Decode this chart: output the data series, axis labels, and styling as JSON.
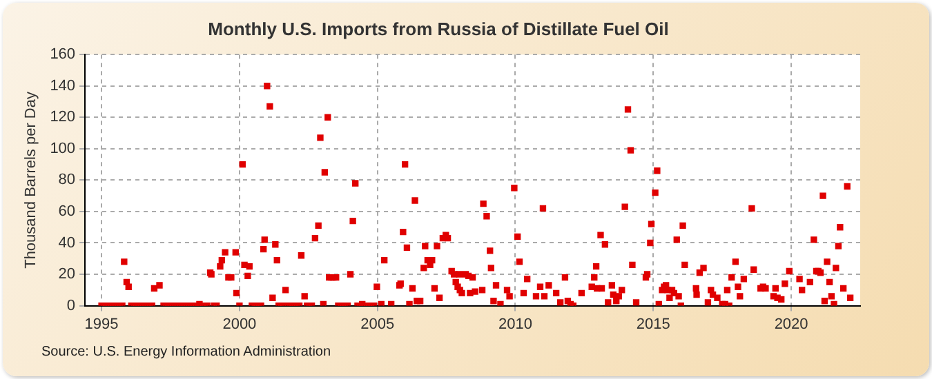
{
  "chart_data": {
    "type": "scatter",
    "title": "Monthly U.S. Imports from Russia of Distillate Fuel Oil",
    "ylabel": "Thousand Barrels per Day",
    "annotations": [
      "Source: U.S. Energy Information Administration"
    ],
    "x": [
      1995.0,
      1995.08,
      1995.17,
      1995.25,
      1995.33,
      1995.42,
      1995.5,
      1995.58,
      1995.67,
      1995.75,
      1995.82,
      1995.91,
      1995.98,
      1996.08,
      1996.17,
      1996.25,
      1996.33,
      1996.42,
      1996.5,
      1996.58,
      1996.67,
      1996.75,
      1996.83,
      1996.91,
      1997.1,
      1997.25,
      1997.33,
      1997.42,
      1997.5,
      1997.58,
      1997.67,
      1997.75,
      1997.83,
      1997.92,
      1998.0,
      1998.08,
      1998.17,
      1998.25,
      1998.33,
      1998.42,
      1998.5,
      1998.55,
      1998.67,
      1998.75,
      1998.83,
      1998.94,
      1998.98,
      1999.08,
      1999.17,
      1999.3,
      1999.36,
      1999.48,
      1999.6,
      1999.7,
      1999.86,
      1999.89,
      2000.0,
      2000.11,
      2000.18,
      2000.3,
      2000.36,
      2000.45,
      2000.55,
      2000.62,
      2000.7,
      2000.78,
      2000.87,
      2000.91,
      2001.0,
      2001.1,
      2001.2,
      2001.3,
      2001.36,
      2001.42,
      2001.5,
      2001.58,
      2001.67,
      2001.75,
      2001.83,
      2001.92,
      2002.0,
      2002.08,
      2002.17,
      2002.24,
      2002.36,
      2002.45,
      2002.53,
      2002.62,
      2002.74,
      2002.86,
      2002.93,
      2003.04,
      2003.09,
      2003.2,
      2003.25,
      2003.33,
      2003.4,
      2003.5,
      2003.58,
      2003.67,
      2003.75,
      2003.83,
      2003.92,
      2004.02,
      2004.11,
      2004.2,
      2004.28,
      2004.36,
      2004.45,
      2004.53,
      2004.62,
      2004.7,
      2004.78,
      2004.87,
      2004.98,
      2005.14,
      2005.25,
      2005.5,
      2005.8,
      2005.84,
      2005.93,
      2006.0,
      2006.07,
      2006.16,
      2006.27,
      2006.36,
      2006.43,
      2006.55,
      2006.68,
      2006.73,
      2006.82,
      2006.91,
      2006.98,
      2007.07,
      2007.16,
      2007.25,
      2007.37,
      2007.48,
      2007.55,
      2007.69,
      2007.78,
      2007.84,
      2007.91,
      2007.97,
      2007.99,
      2008.06,
      2008.2,
      2008.3,
      2008.36,
      2008.45,
      2008.54,
      2008.8,
      2008.84,
      2008.96,
      2009.08,
      2009.12,
      2009.21,
      2009.3,
      2009.46,
      2009.7,
      2009.79,
      2009.96,
      2010.08,
      2010.15,
      2010.3,
      2010.43,
      2010.75,
      2010.9,
      2011.0,
      2011.05,
      2011.21,
      2011.48,
      2011.63,
      2011.8,
      2011.9,
      2012.0,
      2012.1,
      2012.4,
      2012.77,
      2012.86,
      2012.93,
      2012.96,
      2013.09,
      2013.13,
      2013.25,
      2013.36,
      2013.5,
      2013.55,
      2013.66,
      2013.75,
      2013.86,
      2013.97,
      2014.08,
      2014.18,
      2014.24,
      2014.38,
      2014.73,
      2014.78,
      2014.89,
      2014.93,
      2015.07,
      2015.14,
      2015.2,
      2015.32,
      2015.39,
      2015.46,
      2015.52,
      2015.59,
      2015.68,
      2015.75,
      2015.85,
      2015.92,
      2016.0,
      2016.07,
      2016.14,
      2016.55,
      2016.57,
      2016.68,
      2016.82,
      2016.98,
      2017.09,
      2017.16,
      2017.32,
      2017.5,
      2017.6,
      2017.68,
      2017.75,
      2017.84,
      2017.98,
      2018.07,
      2018.14,
      2018.28,
      2018.57,
      2018.64,
      2018.89,
      2018.98,
      2019.07,
      2019.36,
      2019.43,
      2019.5,
      2019.64,
      2019.77,
      2019.93,
      2020.3,
      2020.39,
      2020.68,
      2020.82,
      2020.91,
      2020.98,
      2021.06,
      2021.15,
      2021.21,
      2021.3,
      2021.39,
      2021.46,
      2021.55,
      2021.62,
      2021.71,
      2021.77,
      2021.89,
      2022.03,
      2022.14
    ],
    "values": [
      0,
      0,
      0,
      0,
      0,
      0,
      0,
      0,
      0,
      0,
      28,
      15,
      12,
      0,
      0,
      0,
      0,
      0,
      0,
      0,
      0,
      0,
      0,
      11,
      13,
      0,
      0,
      0,
      0,
      0,
      0,
      0,
      0,
      0,
      0,
      0,
      0,
      0,
      0,
      0,
      0,
      1,
      0,
      0,
      0,
      21,
      20,
      0,
      0,
      25,
      29,
      34,
      18,
      18,
      34,
      8,
      0,
      90,
      26,
      19,
      25,
      0,
      0,
      0,
      0,
      0,
      36,
      42,
      140,
      127,
      5,
      39,
      29,
      0,
      0,
      0,
      10,
      0,
      0,
      0,
      0,
      0,
      0,
      32,
      6,
      0,
      0,
      0,
      43,
      51,
      107,
      1,
      85,
      120,
      18,
      18,
      18,
      18,
      0,
      0,
      0,
      0,
      0,
      20,
      54,
      78,
      0,
      0,
      1,
      0,
      0,
      0,
      0,
      0,
      12,
      1,
      29,
      1,
      13,
      14,
      47,
      90,
      37,
      1,
      11,
      67,
      3,
      3,
      24,
      38,
      29,
      26,
      29,
      11,
      38,
      5,
      43,
      45,
      43,
      22,
      20,
      15,
      12,
      20,
      10,
      8,
      20,
      19,
      8,
      18,
      9,
      10,
      65,
      57,
      35,
      24,
      3,
      13,
      1,
      10,
      6,
      75,
      44,
      28,
      8,
      17,
      6,
      12,
      62,
      6,
      13,
      8,
      2,
      18,
      3,
      1,
      0,
      8,
      12,
      18,
      25,
      11,
      45,
      11,
      39,
      2,
      13,
      7,
      3,
      6,
      10,
      63,
      125,
      99,
      26,
      2,
      18,
      20,
      40,
      52,
      72,
      86,
      1,
      10,
      12,
      13,
      10,
      5,
      10,
      8,
      42,
      6,
      0,
      51,
      26,
      11,
      7,
      21,
      24,
      2,
      10,
      7,
      5,
      1,
      1,
      10,
      0,
      18,
      28,
      12,
      6,
      17,
      62,
      23,
      11,
      12,
      11,
      6,
      11,
      5,
      4,
      14,
      22,
      17,
      10,
      15,
      42,
      22,
      22,
      21,
      70,
      3,
      28,
      15,
      6,
      1,
      24,
      38,
      50,
      11,
      76,
      5
    ],
    "color": "#e00000",
    "marker": "square",
    "xlim": [
      1994.4,
      2022.5
    ],
    "xticks": [
      1995,
      2000,
      2005,
      2010,
      2015,
      2020
    ],
    "ylim": [
      0,
      160
    ],
    "yticks": [
      0,
      20,
      40,
      60,
      80,
      100,
      120,
      140,
      160
    ],
    "grid": true
  }
}
